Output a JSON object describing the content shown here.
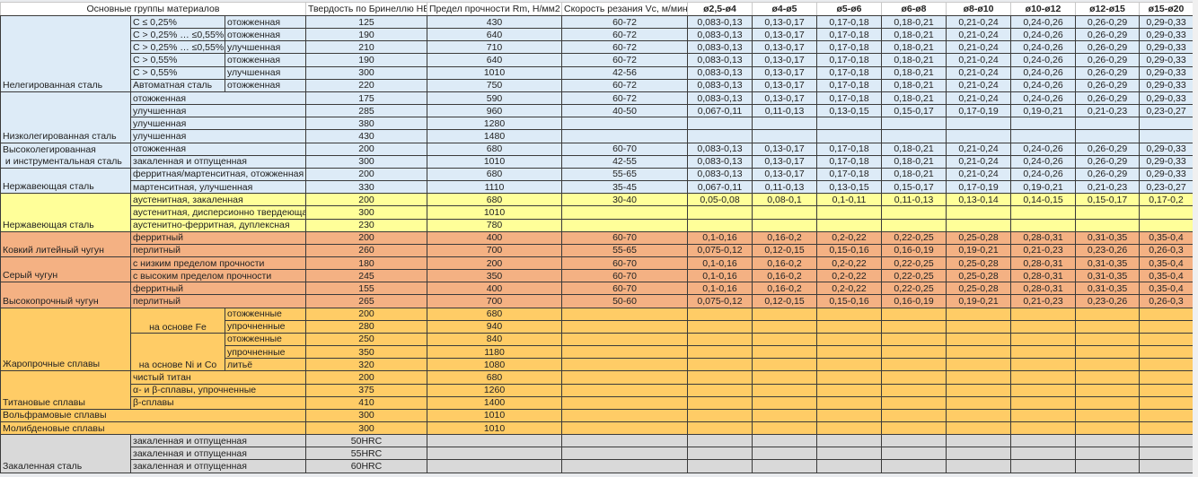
{
  "colors": {
    "blue": "#ddebf7",
    "yellow": "#ffff99",
    "salmon": "#f4b183",
    "orange": "#ffcc66",
    "gray": "#d9d9d9"
  },
  "header": {
    "group": "Основные группы материалов",
    "hb": "Твердость по Бринеллю HB",
    "rm": "Предел прочности Rm, Н/мм2",
    "vc": "Скорость резания Vc, м/мин",
    "diameters": [
      "ø2,5-ø4",
      "ø4-ø5",
      "ø5-ø6",
      "ø6-ø8",
      "ø8-ø10",
      "ø10-ø12",
      "ø12-ø15",
      "ø15-ø20"
    ]
  },
  "groups": [
    {
      "label": "Нелегированная сталь",
      "color": "blue",
      "rows": [
        {
          "sub": "C ≤ 0,25%",
          "cond": "отожженная",
          "hb": "125",
          "rm": "430",
          "vc": "60-72",
          "feeds": [
            "0,083-0,13",
            "0,13-0,17",
            "0,17-0,18",
            "0,18-0,21",
            "0,21-0,24",
            "0,24-0,26",
            "0,26-0,29",
            "0,29-0,33"
          ]
        },
        {
          "sub": "C > 0,25% … ≤0,55%",
          "cond": "отожженная",
          "hb": "190",
          "rm": "640",
          "vc": "60-72",
          "feeds": [
            "0,083-0,13",
            "0,13-0,17",
            "0,17-0,18",
            "0,18-0,21",
            "0,21-0,24",
            "0,24-0,26",
            "0,26-0,29",
            "0,29-0,33"
          ]
        },
        {
          "sub": "C > 0,25% … ≤0,55%",
          "cond": "улучшенная",
          "hb": "210",
          "rm": "710",
          "vc": "60-72",
          "feeds": [
            "0,083-0,13",
            "0,13-0,17",
            "0,17-0,18",
            "0,18-0,21",
            "0,21-0,24",
            "0,24-0,26",
            "0,26-0,29",
            "0,29-0,33"
          ]
        },
        {
          "sub": "C > 0,55%",
          "cond": "отожженная",
          "hb": "190",
          "rm": "640",
          "vc": "60-72",
          "feeds": [
            "0,083-0,13",
            "0,13-0,17",
            "0,17-0,18",
            "0,18-0,21",
            "0,21-0,24",
            "0,24-0,26",
            "0,26-0,29",
            "0,29-0,33"
          ]
        },
        {
          "sub": "C > 0,55%",
          "cond": "улучшенная",
          "hb": "300",
          "rm": "1010",
          "vc": "42-56",
          "feeds": [
            "0,083-0,13",
            "0,13-0,17",
            "0,17-0,18",
            "0,18-0,21",
            "0,21-0,24",
            "0,24-0,26",
            "0,26-0,29",
            "0,29-0,33"
          ]
        },
        {
          "sub": "Автоматная сталь",
          "cond": "отожженная",
          "hb": "220",
          "rm": "750",
          "vc": "60-72",
          "feeds": [
            "0,083-0,13",
            "0,13-0,17",
            "0,17-0,18",
            "0,18-0,21",
            "0,21-0,24",
            "0,24-0,26",
            "0,26-0,29",
            "0,29-0,33"
          ]
        }
      ]
    },
    {
      "label": "Низколегированная сталь",
      "color": "blue",
      "rows": [
        {
          "sub": "отожженная",
          "hb": "175",
          "rm": "590",
          "vc": "60-72",
          "feeds": [
            "0,083-0,13",
            "0,13-0,17",
            "0,17-0,18",
            "0,18-0,21",
            "0,21-0,24",
            "0,24-0,26",
            "0,26-0,29",
            "0,29-0,33"
          ]
        },
        {
          "sub": "улучшенная",
          "hb": "285",
          "rm": "960",
          "vc": "40-50",
          "feeds": [
            "0,067-0,11",
            "0,11-0,13",
            "0,13-0,15",
            "0,15-0,17",
            "0,17-0,19",
            "0,19-0,21",
            "0,21-0,23",
            "0,23-0,27"
          ]
        },
        {
          "sub": "улучшенная",
          "hb": "380",
          "rm": "1280",
          "vc": "",
          "feeds": [
            "",
            "",
            "",
            "",
            "",
            "",
            "",
            ""
          ]
        },
        {
          "sub": "улучшенная",
          "hb": "430",
          "rm": "1480",
          "vc": "",
          "feeds": [
            "",
            "",
            "",
            "",
            "",
            "",
            "",
            ""
          ]
        }
      ]
    },
    {
      "label": "Высоколегированная\n и инструментальная сталь",
      "color": "blue",
      "rows": [
        {
          "sub": "отожженная",
          "hb": "200",
          "rm": "680",
          "vc": "60-70",
          "feeds": [
            "0,083-0,13",
            "0,13-0,17",
            "0,17-0,18",
            "0,18-0,21",
            "0,21-0,24",
            "0,24-0,26",
            "0,26-0,29",
            "0,29-0,33"
          ]
        },
        {
          "sub": "закаленная и отпущенная",
          "hb": "300",
          "rm": "1010",
          "vc": "42-55",
          "feeds": [
            "0,083-0,13",
            "0,13-0,17",
            "0,17-0,18",
            "0,18-0,21",
            "0,21-0,24",
            "0,24-0,26",
            "0,26-0,29",
            "0,29-0,33"
          ]
        }
      ]
    },
    {
      "label": "Нержавеющая сталь",
      "color": "blue",
      "rows": [
        {
          "sub": "ферритная/мартенситная, отожженная",
          "hb": "200",
          "rm": "680",
          "vc": "55-65",
          "feeds": [
            "0,083-0,13",
            "0,13-0,17",
            "0,17-0,18",
            "0,18-0,21",
            "0,21-0,24",
            "0,24-0,26",
            "0,26-0,29",
            "0,29-0,33"
          ]
        },
        {
          "sub": "мартенситная, улучшенная",
          "hb": "330",
          "rm": "1110",
          "vc": "35-45",
          "feeds": [
            "0,067-0,11",
            "0,11-0,13",
            "0,13-0,15",
            "0,15-0,17",
            "0,17-0,19",
            "0,19-0,21",
            "0,21-0,23",
            "0,23-0,27"
          ]
        }
      ]
    },
    {
      "label": "Нержавеющая сталь",
      "color": "yellow",
      "rows": [
        {
          "sub": "аустенитная, закаленная",
          "hb": "200",
          "rm": "680",
          "vc": "30-40",
          "feeds": [
            "0,05-0,08",
            "0,08-0,1",
            "0,1-0,11",
            "0,11-0,13",
            "0,13-0,14",
            "0,14-0,15",
            "0,15-0,17",
            "0,17-0,2"
          ]
        },
        {
          "sub": "аустенитная, дисперсионно твердеющая",
          "hb": "300",
          "rm": "1010",
          "vc": "",
          "feeds": [
            "",
            "",
            "",
            "",
            "",
            "",
            "",
            ""
          ]
        },
        {
          "sub": "аустенитно-ферритная, дуплексная",
          "hb": "230",
          "rm": "780",
          "vc": "",
          "feeds": [
            "",
            "",
            "",
            "",
            "",
            "",
            "",
            ""
          ]
        }
      ]
    },
    {
      "label": "Ковкий литейный чугун",
      "color": "salmon",
      "rows": [
        {
          "sub": "ферритный",
          "hb": "200",
          "rm": "400",
          "vc": "60-70",
          "feeds": [
            "0,1-0,16",
            "0,16-0,2",
            "0,2-0,22",
            "0,22-0,25",
            "0,25-0,28",
            "0,28-0,31",
            "0,31-0,35",
            "0,35-0,4"
          ]
        },
        {
          "sub": "перлитный",
          "hb": "260",
          "rm": "700",
          "vc": "55-65",
          "feeds": [
            "0,075-0,12",
            "0,12-0,15",
            "0,15-0,16",
            "0,16-0,19",
            "0,19-0,21",
            "0,21-0,23",
            "0,23-0,26",
            "0,26-0,3"
          ]
        }
      ]
    },
    {
      "label": "Серый чугун",
      "color": "salmon",
      "rows": [
        {
          "sub": "с низким пределом прочности",
          "hb": "180",
          "rm": "200",
          "vc": "60-70",
          "feeds": [
            "0,1-0,16",
            "0,16-0,2",
            "0,2-0,22",
            "0,22-0,25",
            "0,25-0,28",
            "0,28-0,31",
            "0,31-0,35",
            "0,35-0,4"
          ]
        },
        {
          "sub": "с высоким пределом прочности",
          "hb": "245",
          "rm": "350",
          "vc": "60-70",
          "feeds": [
            "0,1-0,16",
            "0,16-0,2",
            "0,2-0,22",
            "0,22-0,25",
            "0,25-0,28",
            "0,28-0,31",
            "0,31-0,35",
            "0,35-0,4"
          ]
        }
      ]
    },
    {
      "label": "Высокопрочный чугун",
      "color": "salmon",
      "rows": [
        {
          "sub": "ферритный",
          "hb": "155",
          "rm": "400",
          "vc": "60-70",
          "feeds": [
            "0,1-0,16",
            "0,16-0,2",
            "0,2-0,22",
            "0,22-0,25",
            "0,25-0,28",
            "0,28-0,31",
            "0,31-0,35",
            "0,35-0,4"
          ]
        },
        {
          "sub": "перлитный",
          "hb": "265",
          "rm": "700",
          "vc": "50-60",
          "feeds": [
            "0,075-0,12",
            "0,12-0,15",
            "0,15-0,16",
            "0,16-0,19",
            "0,19-0,21",
            "0,21-0,23",
            "0,23-0,26",
            "0,26-0,3"
          ]
        }
      ]
    },
    {
      "label": "Жаропрочные сплавы",
      "color": "orange",
      "subgroups": [
        {
          "label": "на основе Fe",
          "rows": [
            {
              "cond": "отожженные",
              "hb": "200",
              "rm": "680"
            },
            {
              "cond": "упрочненные",
              "hb": "280",
              "rm": "940"
            }
          ]
        },
        {
          "label": "на основе Ni и Co",
          "rows": [
            {
              "cond": "отожженные",
              "hb": "250",
              "rm": "840"
            },
            {
              "cond": "упрочненные",
              "hb": "350",
              "rm": "1180"
            },
            {
              "cond": "литьё",
              "hb": "320",
              "rm": "1080"
            }
          ]
        }
      ]
    },
    {
      "label": "Титановые сплавы",
      "color": "orange",
      "rows": [
        {
          "sub": "чистый титан",
          "hb": "200",
          "rm": "680"
        },
        {
          "sub": "α- и β-сплавы, упрочненные",
          "hb": "375",
          "rm": "1260"
        },
        {
          "sub": "β-сплавы",
          "hb": "410",
          "rm": "1400"
        }
      ]
    },
    {
      "label": "Вольфрамовые сплавы",
      "color": "orange",
      "hb": "300",
      "rm": "1010"
    },
    {
      "label": "Молибденовые сплавы",
      "color": "orange",
      "hb": "300",
      "rm": "1010"
    },
    {
      "label": "Закаленная сталь",
      "color": "gray",
      "rows": [
        {
          "sub": "закаленная и отпущенная",
          "hb": "50HRC",
          "rm": ""
        },
        {
          "sub": "закаленная и отпущенная",
          "hb": "55HRC",
          "rm": ""
        },
        {
          "sub": "закаленная и отпущенная",
          "hb": "60HRC",
          "rm": ""
        }
      ]
    }
  ]
}
